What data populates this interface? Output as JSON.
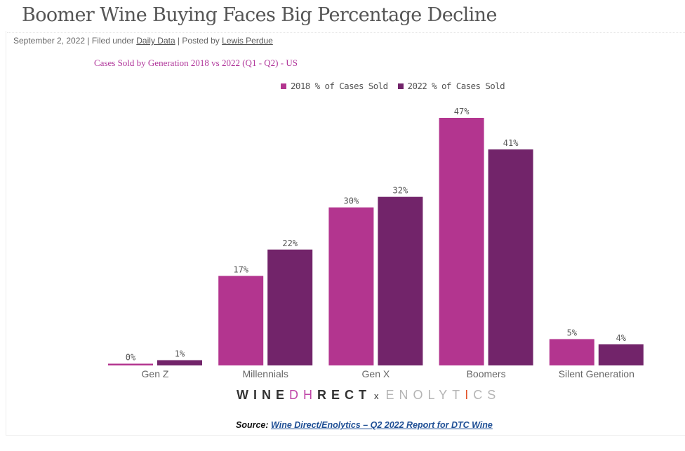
{
  "article": {
    "title": "Boomer Wine Buying Faces Big Percentage Decline",
    "date": "September 2, 2022",
    "filed_under_prefix": "| Filed under",
    "category_link": "Daily Data",
    "posted_by_prefix": "| Posted by",
    "author_link": "Lewis Perdue"
  },
  "logo": {
    "brand1_part1": "WINE",
    "brand1_glyph": "DH",
    "brand1_part2": "RECT",
    "separator": "x",
    "brand2_part1": "ENOLYT",
    "brand2_glyph": "I",
    "brand2_part2": "CS"
  },
  "source": {
    "label": "Source:",
    "link_text": "Wine Direct/Enolytics – Q2 2022 Report for DTC Wine"
  },
  "chart_data": {
    "type": "bar",
    "title": "Cases Sold by Generation 2018 vs 2022 (Q1 - Q2) - US",
    "xlabel": "",
    "ylabel": "",
    "ylim": [
      0,
      47
    ],
    "grid": false,
    "legend_position": "top-right",
    "categories": [
      "Gen Z",
      "Millennials",
      "Gen X",
      "Boomers",
      "Silent Generation"
    ],
    "series": [
      {
        "name": "2018 % of Cases Sold",
        "color": "#b3358f",
        "values": [
          0,
          17,
          30,
          47,
          5
        ],
        "labels": [
          "0%",
          "17%",
          "30%",
          "47%",
          "5%"
        ]
      },
      {
        "name": "2022 % of Cases Sold",
        "color": "#72246a",
        "values": [
          1,
          22,
          32,
          41,
          4
        ],
        "labels": [
          "1%",
          "22%",
          "32%",
          "41%",
          "4%"
        ]
      }
    ]
  }
}
